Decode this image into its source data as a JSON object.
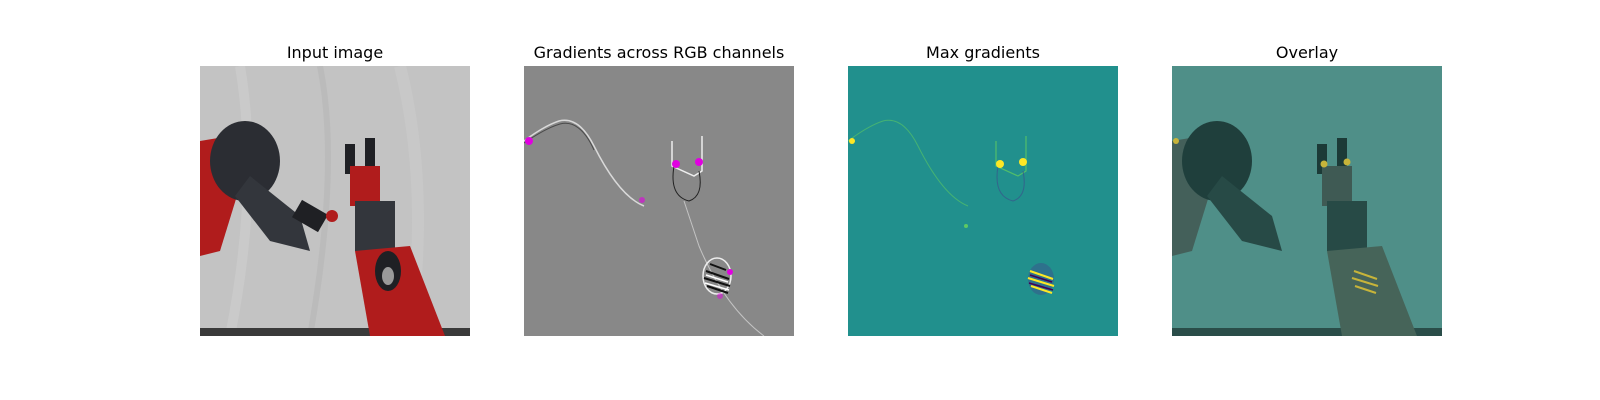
{
  "figure": {
    "panels": [
      {
        "title": "Input image"
      },
      {
        "title": "Gradients across RGB channels"
      },
      {
        "title": "Max gradients"
      },
      {
        "title": "Overlay"
      }
    ]
  },
  "colors": {
    "background": "#ffffff",
    "backdrop_gray": "#c3c3c3",
    "robot_red": "#b01c1c",
    "robot_dark": "#2b2d33",
    "gradient_gray": "#888888",
    "gradient_magenta": "#e100e1",
    "viridis_teal": "#21908d",
    "viridis_yellow": "#fde725",
    "overlay_teal": "#4f8f88"
  }
}
